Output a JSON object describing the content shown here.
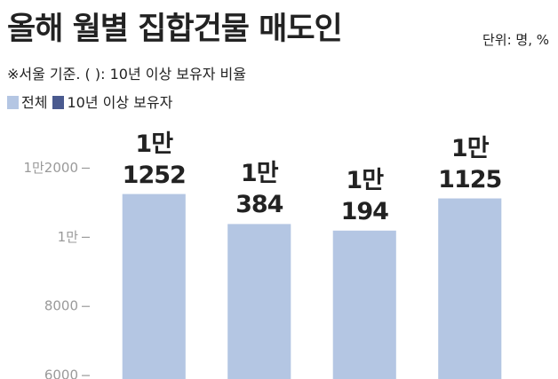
{
  "chart_data": {
    "type": "bar",
    "title": "올해 월별 집합건물 매도인",
    "unit": "단위: 명, %",
    "note": "※서울 기준. ( ): 10년 이상 보유자 비율",
    "categories": [
      null,
      null,
      null,
      null
    ],
    "series": [
      {
        "name": "전체",
        "color": "#b4c6e3",
        "values": [
          11252,
          10384,
          10194,
          11125
        ],
        "value_labels": [
          "1만\n1252",
          "1만\n384",
          "1만\n194",
          "1만\n1125"
        ]
      },
      {
        "name": "10년 이상 보유자",
        "color": "#4a5a8f",
        "values": [
          null,
          null,
          null,
          null
        ]
      }
    ],
    "ylim": [
      5900,
      12500
    ],
    "yticks": [
      6000,
      8000,
      {
        "value": 10000,
        "label": "1만"
      },
      {
        "value": 12000,
        "label": "1만2000"
      }
    ]
  }
}
